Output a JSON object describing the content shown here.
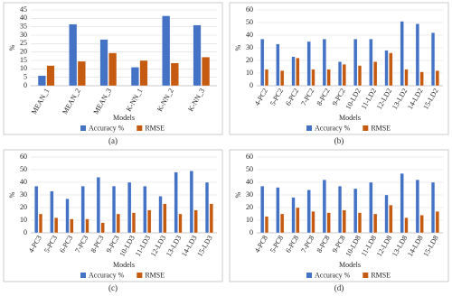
{
  "chart_data": [
    {
      "type": "bar",
      "caption": "(a)",
      "xlabel": "Models",
      "ylabel": "%",
      "categories": [
        "MEAN_1",
        "MEAN_2",
        "MEAN_3",
        "K-NN_1",
        "K-NN_2",
        "K-NN_3"
      ],
      "series": [
        {
          "name": "Accuracy %",
          "color": "#4472c4",
          "values": [
            6,
            36.5,
            27.5,
            11,
            41.5,
            36
          ]
        },
        {
          "name": "RMSE",
          "color": "#c55a11",
          "values": [
            12,
            14.5,
            19.5,
            15,
            13.5,
            17
          ]
        }
      ],
      "ylim": [
        0,
        45
      ],
      "yticks": [
        0,
        5,
        10,
        15,
        20,
        25,
        30,
        35,
        40,
        45
      ],
      "grid": true,
      "legend": "bottom"
    },
    {
      "type": "bar",
      "caption": "(b)",
      "xlabel": "Models",
      "ylabel": "%",
      "categories": [
        "4-PC2",
        "5-PC2",
        "6-PC2",
        "7-PC2",
        "8-PC2",
        "9-PC2",
        "10-LD2",
        "11-LD2",
        "12-LD2",
        "13-LD2",
        "14-LD2",
        "15-LD2"
      ],
      "series": [
        {
          "name": "Accuracy %",
          "color": "#4472c4",
          "values": [
            37,
            33,
            23,
            35,
            37,
            19,
            37,
            37,
            28,
            51,
            49,
            42
          ]
        },
        {
          "name": "RMSE",
          "color": "#c55a11",
          "values": [
            13,
            12,
            22,
            13,
            13,
            17,
            16,
            19,
            26,
            13,
            11,
            12
          ]
        }
      ],
      "ylim": [
        0,
        60
      ],
      "yticks": [
        0,
        10,
        20,
        30,
        40,
        50,
        60
      ],
      "grid": true,
      "legend": "bottom"
    },
    {
      "type": "bar",
      "caption": "(c)",
      "xlabel": "Models",
      "ylabel": "%",
      "categories": [
        "4-PC3",
        "5-PC3",
        "6-PC3",
        "7-PC3",
        "8-PC3",
        "9-PC3",
        "10-LD3",
        "11-LD3",
        "12-LD3",
        "13-LD3",
        "14-LD3",
        "15-LD3"
      ],
      "series": [
        {
          "name": "Accuracy %",
          "color": "#4472c4",
          "values": [
            37,
            33,
            27,
            37,
            44,
            37,
            40,
            37,
            29,
            48,
            49,
            40
          ]
        },
        {
          "name": "RMSE",
          "color": "#c55a11",
          "values": [
            15,
            12,
            11,
            11,
            8,
            15,
            16,
            18,
            23,
            15,
            18,
            23
          ]
        }
      ],
      "ylim": [
        0,
        60
      ],
      "yticks": [
        0,
        10,
        20,
        30,
        40,
        50,
        60
      ],
      "grid": true,
      "legend": "bottom"
    },
    {
      "type": "bar",
      "caption": "(d)",
      "xlabel": "Models",
      "ylabel": "%",
      "categories": [
        "4-PC8",
        "5-PC8",
        "6-PC8",
        "7-PC8",
        "8-PC8",
        "9-PC8",
        "10-LD8",
        "11-LD8",
        "12-LD8",
        "13-LD8",
        "14-LD8",
        "15-LD8"
      ],
      "series": [
        {
          "name": "Accuracy %",
          "color": "#4472c4",
          "values": [
            37,
            36,
            28,
            34,
            42,
            37,
            35,
            40,
            30,
            47,
            42,
            40
          ]
        },
        {
          "name": "RMSE",
          "color": "#c55a11",
          "values": [
            13,
            15,
            20,
            17,
            16,
            18,
            16,
            15,
            22,
            12,
            14,
            17
          ]
        }
      ],
      "ylim": [
        0,
        60
      ],
      "yticks": [
        0,
        10,
        20,
        30,
        40,
        50,
        60
      ],
      "grid": true,
      "legend": "bottom"
    }
  ]
}
